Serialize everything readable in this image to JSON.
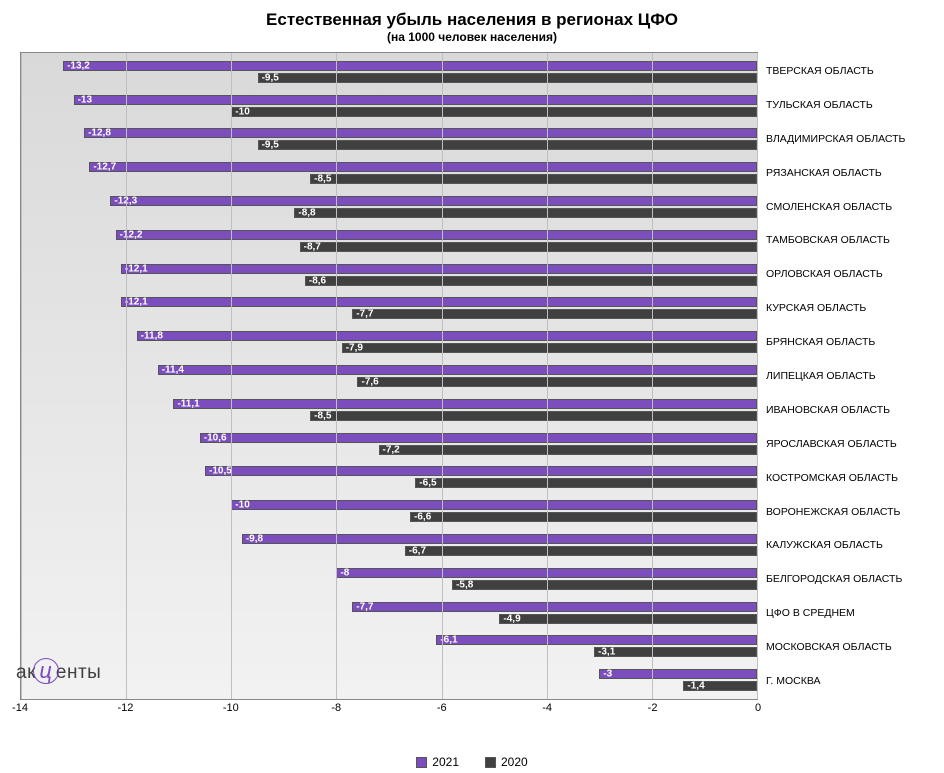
{
  "chart": {
    "type": "bar-horizontal-grouped",
    "title": "Естественная убыль населения в регионах ЦФО",
    "subtitle": "(на 1000 человек населения)",
    "title_fontsize": 17,
    "subtitle_fontsize": 12,
    "background_gradient": [
      "#d9d9d9",
      "#f2f2f2"
    ],
    "grid_color": "#bfbfbf",
    "border_color": "#888888",
    "x_axis": {
      "min": -14,
      "max": 0,
      "tick_step": 2,
      "ticks": [
        -14,
        -12,
        -10,
        -8,
        -6,
        -4,
        -2,
        0
      ],
      "label_fontsize": 11
    },
    "series": [
      {
        "name": "2021",
        "color": "#7c4dbd"
      },
      {
        "name": "2020",
        "color": "#404040"
      }
    ],
    "bar_label_color": "#ffffff",
    "bar_label_fontsize": 10,
    "ylabel_fontsize": 10.5,
    "categories": [
      {
        "label": "ТВЕРСКАЯ ОБЛАСТЬ",
        "v2021": -13.2,
        "v2020": -9.5
      },
      {
        "label": "ТУЛЬСКАЯ ОБЛАСТЬ",
        "v2021": -13.0,
        "v2020": -10.0
      },
      {
        "label": "ВЛАДИМИРСКАЯ ОБЛАСТЬ",
        "v2021": -12.8,
        "v2020": -9.5
      },
      {
        "label": "РЯЗАНСКАЯ ОБЛАСТЬ",
        "v2021": -12.7,
        "v2020": -8.5
      },
      {
        "label": "СМОЛЕНСКАЯ ОБЛАСТЬ",
        "v2021": -12.3,
        "v2020": -8.8
      },
      {
        "label": "ТАМБОВСКАЯ ОБЛАСТЬ",
        "v2021": -12.2,
        "v2020": -8.7
      },
      {
        "label": "ОРЛОВСКАЯ ОБЛАСТЬ",
        "v2021": -12.1,
        "v2020": -8.6
      },
      {
        "label": "КУРСКАЯ ОБЛАСТЬ",
        "v2021": -12.1,
        "v2020": -7.7
      },
      {
        "label": "БРЯНСКАЯ ОБЛАСТЬ",
        "v2021": -11.8,
        "v2020": -7.9
      },
      {
        "label": "ЛИПЕЦКАЯ ОБЛАСТЬ",
        "v2021": -11.4,
        "v2020": -7.6
      },
      {
        "label": "ИВАНОВСКАЯ ОБЛАСТЬ",
        "v2021": -11.1,
        "v2020": -8.5
      },
      {
        "label": "ЯРОСЛАВСКАЯ ОБЛАСТЬ",
        "v2021": -10.6,
        "v2020": -7.2
      },
      {
        "label": "КОСТРОМСКАЯ ОБЛАСТЬ",
        "v2021": -10.5,
        "v2020": -6.5
      },
      {
        "label": "ВОРОНЕЖСКАЯ ОБЛАСТЬ",
        "v2021": -10.0,
        "v2020": -6.6
      },
      {
        "label": "КАЛУЖСКАЯ ОБЛАСТЬ",
        "v2021": -9.8,
        "v2020": -6.7
      },
      {
        "label": "БЕЛГОРОДСКАЯ ОБЛАСТЬ",
        "v2021": -8.0,
        "v2020": -5.8
      },
      {
        "label": "ЦФО В СРЕДНЕМ",
        "v2021": -7.7,
        "v2020": -4.9
      },
      {
        "label": "МОСКОВСКАЯ ОБЛАСТЬ",
        "v2021": -6.1,
        "v2020": -3.1
      },
      {
        "label": "Г. МОСКВА",
        "v2021": -3.0,
        "v2020": -1.4
      }
    ]
  },
  "legend": {
    "items": [
      {
        "label": "2021",
        "color": "#7c4dbd"
      },
      {
        "label": "2020",
        "color": "#404040"
      }
    ],
    "fontsize": 12
  },
  "logo": {
    "pre": "ак",
    "mid": "ц",
    "post": "енты",
    "text_color": "#404040",
    "accent_color": "#7c4dbd"
  }
}
